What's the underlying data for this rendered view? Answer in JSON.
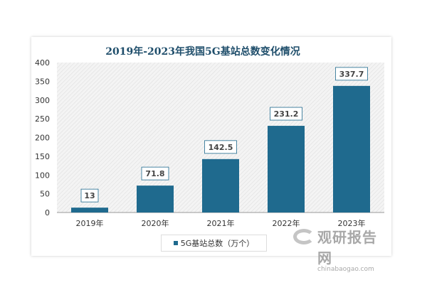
{
  "chart_data": {
    "type": "bar",
    "title": "2019年-2023年我国5G基站总数变化情况",
    "categories": [
      "2019年",
      "2020年",
      "2021年",
      "2022年",
      "2023年"
    ],
    "series": [
      {
        "name": "5G基站总数（万个）",
        "values": [
          13,
          71.8,
          142.5,
          231.2,
          337.7
        ],
        "color": "#1f6a8e"
      }
    ],
    "data_labels": [
      "13",
      "71.8",
      "142.5",
      "231.2",
      "337.7"
    ],
    "ylim": [
      0,
      400
    ],
    "yticks": [
      0,
      50,
      100,
      150,
      200,
      250,
      300,
      350,
      400
    ],
    "xlabel": "",
    "ylabel": "",
    "grid": false,
    "plot_background": "hatched light gray",
    "legend": "bottom"
  },
  "watermark": {
    "name": "观研报告网",
    "url": "chinabaogao.com"
  }
}
